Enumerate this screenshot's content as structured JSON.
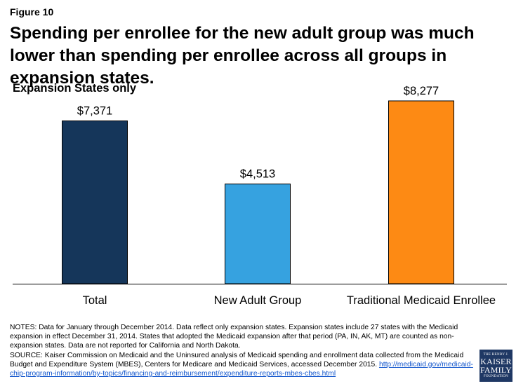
{
  "figure_label": "Figure 10",
  "chart_data": {
    "type": "bar",
    "title": "Spending per enrollee for the new adult group was much lower than spending per enrollee across all groups in expansion states.",
    "subtitle": "Expansion States only",
    "categories": [
      "Total",
      "New Adult Group",
      "Traditional Medicaid Enrollee"
    ],
    "values": [
      7371,
      4513,
      8277
    ],
    "value_labels": [
      "$7,371",
      "$4,513",
      "$8,277"
    ],
    "colors": [
      "#15365a",
      "#36a2e0",
      "#fd8a14"
    ],
    "ylim": [
      0,
      9000
    ],
    "xlabel": "",
    "ylabel": ""
  },
  "notes": {
    "notes_text": "NOTES: Data for January through December 2014. Data reflect only expansion states. Expansion states include 27 states with the Medicaid expansion in effect December 31, 2014. States that adopted the Medicaid expansion after that period (PA, IN, AK, MT) are counted as non-expansion states. Data are not reported for California and North Dakota.",
    "source_text": "SOURCE: Kaiser Commission on Medicaid and the Uninsured analysis of Medicaid spending and enrollment data collected from the Medicaid Budget and Expenditure System (MBES), Centers for Medicare and Medicaid Services, accessed December 2015.",
    "source_link": "http://medicaid.gov/medicaid-chip-program-information/by-topics/financing-and-reimbursement/expenditure-reports-mbes-cbes.html"
  },
  "logo": {
    "line1": "THE HENRY J.",
    "line2": "KAISER",
    "line3": "FAMILY",
    "line4": "FOUNDATION"
  }
}
